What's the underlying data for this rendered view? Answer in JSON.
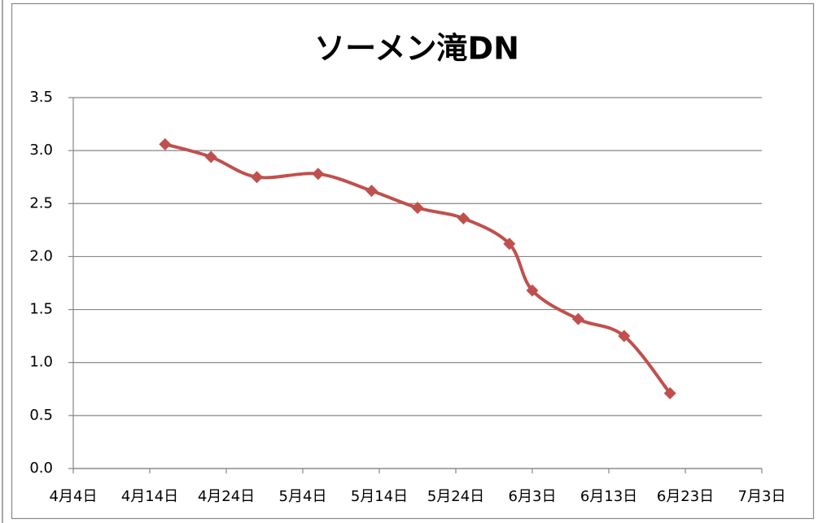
{
  "chart_data": {
    "type": "line",
    "title": "ソーメン滝DN",
    "x": [
      "4月16日",
      "4月22日",
      "4月28日",
      "5月6日",
      "5月13日",
      "5月19日",
      "5月25日",
      "5月31日",
      "6月3日",
      "6月9日",
      "6月15日",
      "6月21日"
    ],
    "series": [
      {
        "name": null,
        "color": "#c0504d",
        "values": [
          3.06,
          2.94,
          2.75,
          2.78,
          2.62,
          2.46,
          2.36,
          2.12,
          1.68,
          1.41,
          1.25,
          0.71
        ]
      }
    ],
    "xlim": [
      "4月4日",
      "7月3日"
    ],
    "xticks": [
      "4月4日",
      "4月14日",
      "4月24日",
      "5月4日",
      "5月14日",
      "5月24日",
      "6月3日",
      "6月13日",
      "6月23日",
      "7月3日"
    ],
    "ylim": [
      0,
      3.5
    ],
    "yticks": [
      {
        "value": 0,
        "label": "0.0"
      },
      0.5,
      {
        "value": 1,
        "label": "1.0"
      },
      1.5,
      {
        "value": 2,
        "label": "2.0"
      },
      2.5,
      {
        "value": 3,
        "label": "3.0"
      },
      3.5
    ],
    "grid": true,
    "smooth": true
  }
}
